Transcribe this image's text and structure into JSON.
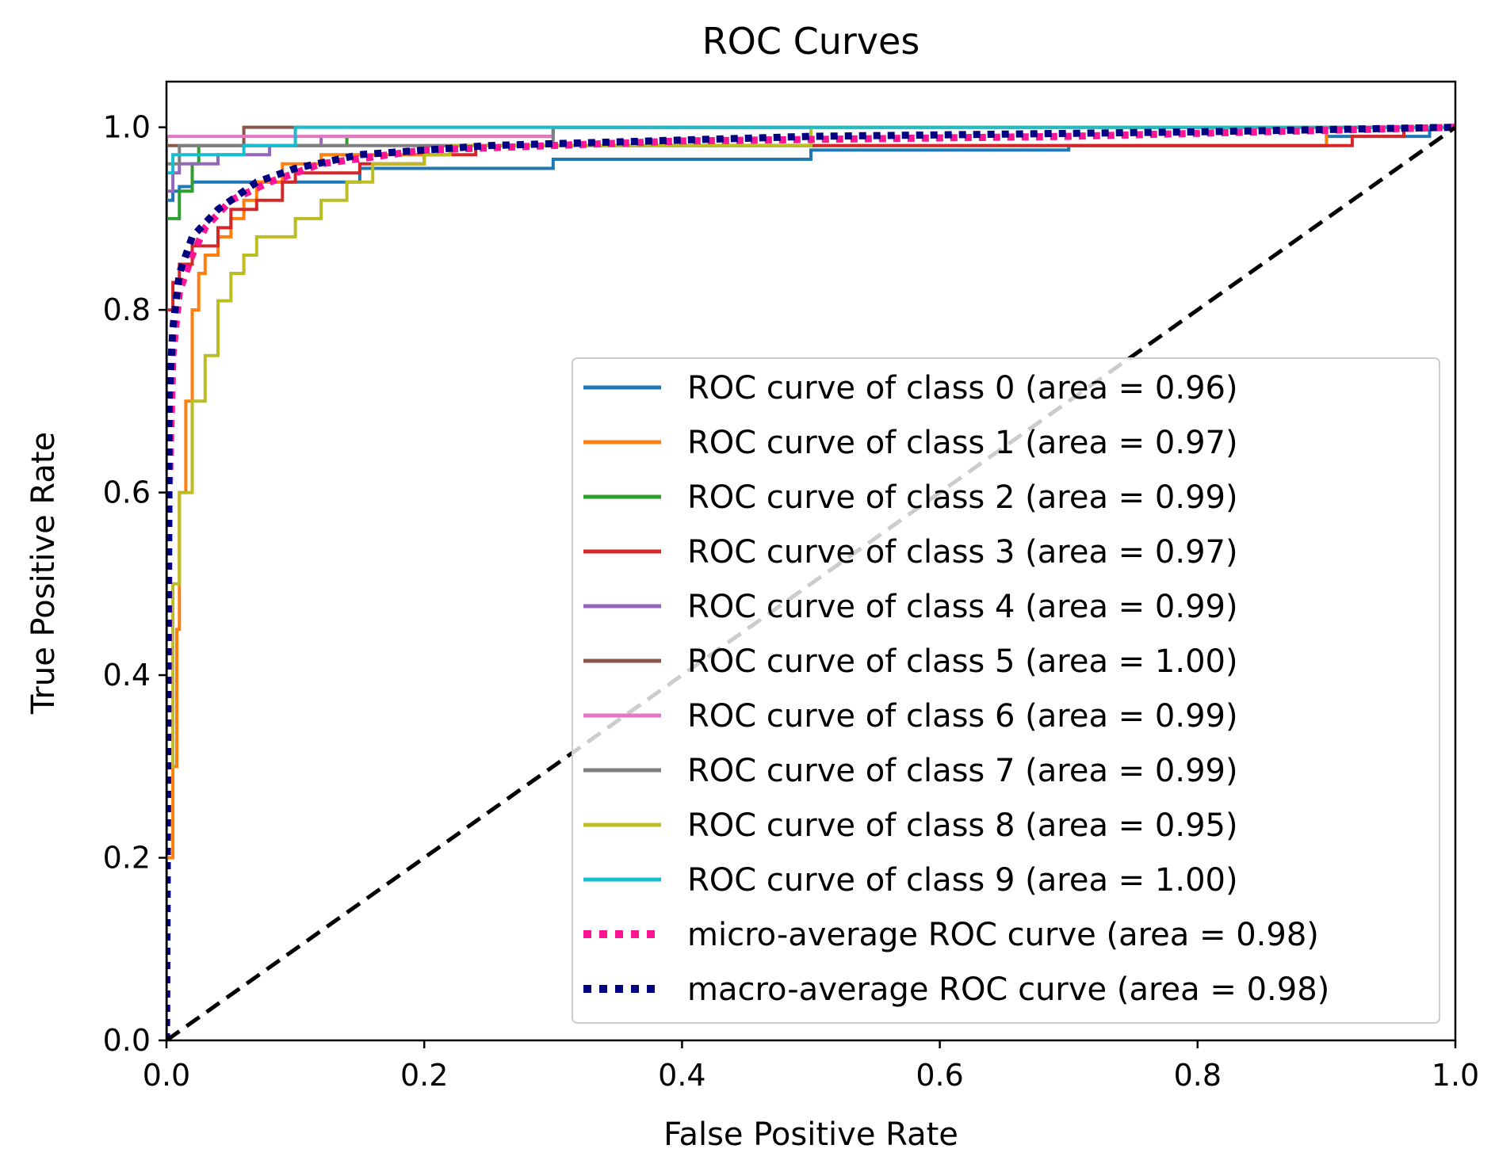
{
  "chart_data": {
    "type": "line",
    "title": "ROC Curves",
    "xlabel": "False Positive Rate",
    "ylabel": "True Positive Rate",
    "xlim": [
      0.0,
      1.0
    ],
    "ylim": [
      0.0,
      1.05
    ],
    "x_ticks": [
      0.0,
      0.2,
      0.4,
      0.6,
      0.8,
      1.0
    ],
    "y_ticks": [
      0.0,
      0.2,
      0.4,
      0.6,
      0.8,
      1.0
    ],
    "x_tick_labels": [
      "0.0",
      "0.2",
      "0.4",
      "0.6",
      "0.8",
      "1.0"
    ],
    "y_tick_labels": [
      "0.0",
      "0.2",
      "0.4",
      "0.6",
      "0.8",
      "1.0"
    ],
    "grid": false,
    "legend_position": "lower-right",
    "series": [
      {
        "name": "ROC curve of class 0 (area = 0.96)",
        "color": "#1f77b4",
        "style": "solid",
        "points": [
          [
            0,
            0
          ],
          [
            0,
            0.88
          ],
          [
            0.005,
            0.92
          ],
          [
            0.01,
            0.93
          ],
          [
            0.02,
            0.935
          ],
          [
            0.15,
            0.94
          ],
          [
            0.3,
            0.955
          ],
          [
            0.5,
            0.965
          ],
          [
            0.7,
            0.975
          ],
          [
            0.9,
            0.98
          ],
          [
            0.98,
            0.99
          ],
          [
            1.0,
            1.0
          ]
        ]
      },
      {
        "name": "ROC curve of class 1 (area = 0.97)",
        "color": "#ff7f0e",
        "style": "solid",
        "points": [
          [
            0,
            0
          ],
          [
            0.005,
            0.2
          ],
          [
            0.008,
            0.3
          ],
          [
            0.01,
            0.45
          ],
          [
            0.015,
            0.6
          ],
          [
            0.02,
            0.7
          ],
          [
            0.025,
            0.8
          ],
          [
            0.03,
            0.84
          ],
          [
            0.04,
            0.86
          ],
          [
            0.05,
            0.88
          ],
          [
            0.06,
            0.9
          ],
          [
            0.07,
            0.92
          ],
          [
            0.09,
            0.94
          ],
          [
            0.12,
            0.96
          ],
          [
            0.2,
            0.97
          ],
          [
            0.5,
            0.98
          ],
          [
            0.9,
            0.98
          ],
          [
            1.0,
            1.0
          ]
        ]
      },
      {
        "name": "ROC curve of class 2 (area = 0.99)",
        "color": "#2ca02c",
        "style": "solid",
        "points": [
          [
            0,
            0
          ],
          [
            0,
            0.86
          ],
          [
            0.01,
            0.9
          ],
          [
            0.02,
            0.93
          ],
          [
            0.025,
            0.96
          ],
          [
            0.03,
            0.98
          ],
          [
            0.14,
            0.98
          ],
          [
            0.14,
            0.99
          ],
          [
            0.3,
            0.99
          ],
          [
            1.0,
            1.0
          ]
        ]
      },
      {
        "name": "ROC curve of class 3 (area = 0.97)",
        "color": "#d62728",
        "style": "solid",
        "points": [
          [
            0,
            0
          ],
          [
            0.005,
            0.8
          ],
          [
            0.01,
            0.83
          ],
          [
            0.02,
            0.85
          ],
          [
            0.04,
            0.87
          ],
          [
            0.05,
            0.89
          ],
          [
            0.07,
            0.91
          ],
          [
            0.09,
            0.92
          ],
          [
            0.1,
            0.94
          ],
          [
            0.15,
            0.95
          ],
          [
            0.2,
            0.96
          ],
          [
            0.24,
            0.97
          ],
          [
            0.25,
            0.98
          ],
          [
            0.92,
            0.98
          ],
          [
            0.96,
            0.99
          ],
          [
            1.0,
            1.0
          ]
        ]
      },
      {
        "name": "ROC curve of class 4 (area = 0.99)",
        "color": "#9467bd",
        "style": "solid",
        "points": [
          [
            0,
            0
          ],
          [
            0,
            0.9
          ],
          [
            0.005,
            0.93
          ],
          [
            0.01,
            0.95
          ],
          [
            0.04,
            0.96
          ],
          [
            0.08,
            0.97
          ],
          [
            0.12,
            0.98
          ],
          [
            0.3,
            0.99
          ],
          [
            1.0,
            1.0
          ]
        ]
      },
      {
        "name": "ROC curve of class 5 (area = 1.00)",
        "color": "#8c564b",
        "style": "solid",
        "points": [
          [
            0,
            0
          ],
          [
            0,
            0.97
          ],
          [
            0.005,
            0.98
          ],
          [
            0.06,
            0.98
          ],
          [
            0.07,
            1.0
          ],
          [
            1.0,
            1.0
          ]
        ]
      },
      {
        "name": "ROC curve of class 6 (area = 0.99)",
        "color": "#e377c2",
        "style": "solid",
        "points": [
          [
            0,
            0
          ],
          [
            0,
            0.985
          ],
          [
            0.3,
            0.99
          ],
          [
            1.0,
            1.0
          ]
        ]
      },
      {
        "name": "ROC curve of class 7 (area = 0.99)",
        "color": "#7f7f7f",
        "style": "solid",
        "points": [
          [
            0,
            0
          ],
          [
            0,
            0.85
          ],
          [
            0.01,
            0.96
          ],
          [
            0.015,
            0.98
          ],
          [
            0.3,
            0.98
          ],
          [
            1.0,
            1.0
          ]
        ]
      },
      {
        "name": "ROC curve of class 8 (area = 0.95)",
        "color": "#bcbd22",
        "style": "solid",
        "points": [
          [
            0,
            0
          ],
          [
            0.005,
            0.3
          ],
          [
            0.01,
            0.5
          ],
          [
            0.02,
            0.6
          ],
          [
            0.03,
            0.7
          ],
          [
            0.04,
            0.75
          ],
          [
            0.05,
            0.81
          ],
          [
            0.06,
            0.84
          ],
          [
            0.07,
            0.86
          ],
          [
            0.1,
            0.88
          ],
          [
            0.12,
            0.9
          ],
          [
            0.14,
            0.92
          ],
          [
            0.16,
            0.94
          ],
          [
            0.2,
            0.96
          ],
          [
            0.22,
            0.97
          ],
          [
            0.5,
            0.98
          ],
          [
            1.0,
            1.0
          ]
        ]
      },
      {
        "name": "ROC curve of class 9 (area = 1.00)",
        "color": "#17becf",
        "style": "solid",
        "points": [
          [
            0,
            0
          ],
          [
            0,
            0.92
          ],
          [
            0.005,
            0.95
          ],
          [
            0.01,
            0.97
          ],
          [
            0.06,
            0.97
          ],
          [
            0.07,
            0.98
          ],
          [
            0.1,
            0.98
          ],
          [
            0.105,
            1.0
          ],
          [
            1.0,
            1.0
          ]
        ]
      },
      {
        "name": "micro-average ROC curve (area = 0.98)",
        "color": "#ff1493",
        "style": "dotted",
        "points": [
          [
            0,
            0
          ],
          [
            0.002,
            0.6
          ],
          [
            0.005,
            0.75
          ],
          [
            0.01,
            0.82
          ],
          [
            0.02,
            0.86
          ],
          [
            0.03,
            0.89
          ],
          [
            0.05,
            0.92
          ],
          [
            0.08,
            0.94
          ],
          [
            0.12,
            0.96
          ],
          [
            0.2,
            0.975
          ],
          [
            0.4,
            0.985
          ],
          [
            0.7,
            0.99
          ],
          [
            1.0,
            1.0
          ]
        ]
      },
      {
        "name": "macro-average ROC curve (area = 0.98)",
        "color": "#000080",
        "style": "dotted",
        "points": [
          [
            0,
            0
          ],
          [
            0.002,
            0.7
          ],
          [
            0.005,
            0.78
          ],
          [
            0.01,
            0.84
          ],
          [
            0.02,
            0.88
          ],
          [
            0.04,
            0.91
          ],
          [
            0.07,
            0.94
          ],
          [
            0.1,
            0.955
          ],
          [
            0.15,
            0.97
          ],
          [
            0.25,
            0.98
          ],
          [
            0.5,
            0.99
          ],
          [
            0.8,
            0.995
          ],
          [
            1.0,
            1.0
          ]
        ]
      },
      {
        "name": "",
        "color": "#000000",
        "style": "dashed",
        "diagonal": true,
        "points": [
          [
            0,
            0
          ],
          [
            1,
            1
          ]
        ]
      }
    ]
  }
}
